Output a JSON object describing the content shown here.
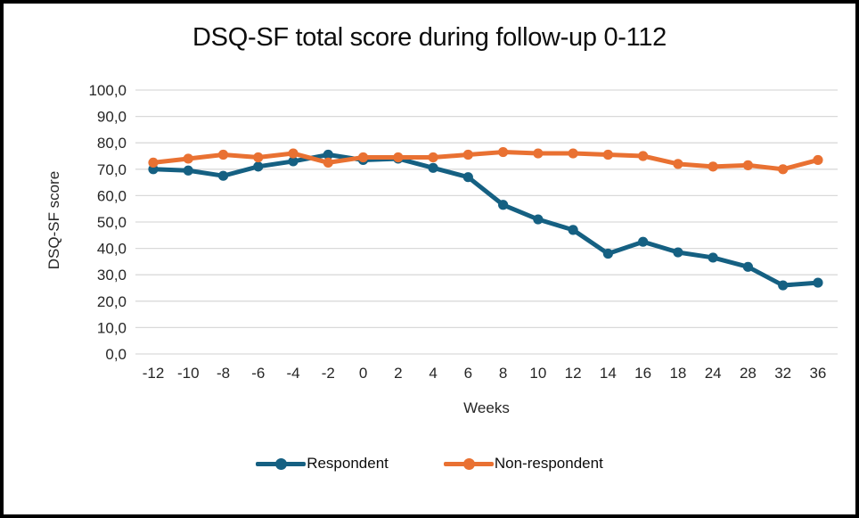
{
  "chart_data": {
    "type": "line",
    "title": "DSQ-SF total score during follow-up 0-112",
    "xlabel": "Weeks",
    "ylabel": "DSQ-SF score",
    "categories": [
      "-12",
      "-10",
      "-8",
      "-6",
      "-4",
      "-2",
      "0",
      "2",
      "4",
      "6",
      "8",
      "10",
      "12",
      "14",
      "16",
      "18",
      "24",
      "28",
      "32",
      "36"
    ],
    "y_tick_labels": [
      "0,0",
      "10,0",
      "20,0",
      "30,0",
      "40,0",
      "50,0",
      "60,0",
      "70,0",
      "80,0",
      "90,0",
      "100,0"
    ],
    "ylim": [
      0,
      100
    ],
    "grid": true,
    "gridline_color": "#D9D9D9",
    "tick_label_color": "#262626",
    "legend_position": "bottom",
    "series": [
      {
        "name": "Respondent",
        "color": "#156082",
        "values": [
          70,
          69.5,
          67.5,
          71,
          73,
          75.5,
          73.5,
          74,
          70.5,
          67,
          56.5,
          51,
          47,
          38,
          42.5,
          38.5,
          36.5,
          33,
          26,
          27
        ]
      },
      {
        "name": "Non-respondent",
        "color": "#E97132",
        "values": [
          72.5,
          74,
          75.5,
          74.5,
          76,
          72.5,
          74.5,
          74.5,
          74.5,
          75.5,
          76.5,
          76,
          76,
          75.5,
          75,
          72,
          71,
          71.5,
          70,
          73.5
        ]
      }
    ]
  }
}
